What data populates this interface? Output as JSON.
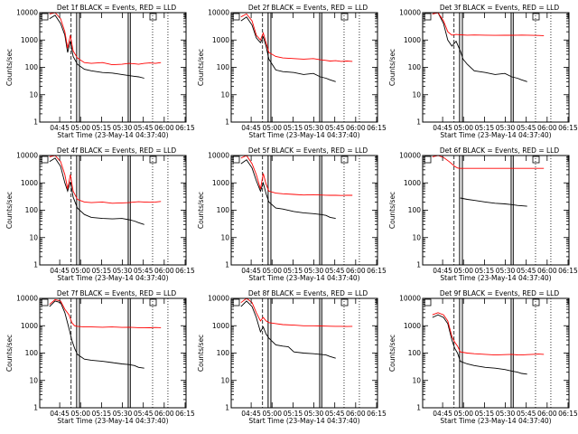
{
  "colors": {
    "events": "#000000",
    "lld": "#ff0000"
  },
  "chart_data": [
    {
      "type": "line",
      "title": "Det 1f BLACK = Events, RED = LLD",
      "xlabel": "Start Time (23-May-14 04:37:40)",
      "ylabel": "Counts/sec",
      "yscale": "log",
      "ylim": [
        1,
        10000
      ],
      "x_tick_labels": [
        "04:45",
        "05:00",
        "05:15",
        "05:30",
        "05:45",
        "06:00",
        "06:15"
      ],
      "y_tick_labels": [
        "1",
        "10",
        "100",
        "1000",
        "10000"
      ],
      "series": [
        {
          "color": "black",
          "x": [
            0,
            4,
            8,
            11,
            13,
            15,
            17,
            20,
            25,
            30,
            38,
            45,
            52,
            57,
            61,
            64,
            68
          ],
          "values": [
            6000,
            8000,
            4000,
            1500,
            350,
            900,
            250,
            130,
            85,
            75,
            65,
            62,
            55,
            50,
            47,
            45,
            40
          ]
        },
        {
          "color": "red",
          "x": [
            0,
            4,
            8,
            11,
            13,
            15,
            17,
            20,
            25,
            30,
            38,
            45,
            52,
            57,
            61,
            64,
            68,
            72,
            76,
            80
          ],
          "values": [
            9000,
            10000,
            6000,
            2000,
            500,
            1500,
            400,
            220,
            150,
            140,
            150,
            125,
            130,
            140,
            135,
            130,
            140,
            145,
            140,
            150
          ]
        }
      ]
    },
    {
      "type": "line",
      "title": "Det 2f BLACK = Events, RED = LLD",
      "xlabel": "Start Time (23-May-14 04:37:40)",
      "ylabel": "Counts/sec",
      "yscale": "log",
      "ylim": [
        1,
        10000
      ],
      "x_tick_labels": [
        "04:45",
        "05:00",
        "05:15",
        "05:30",
        "05:45",
        "06:00",
        "06:15"
      ],
      "y_tick_labels": [
        "1",
        "10",
        "100",
        "1000",
        "10000"
      ],
      "series": [
        {
          "color": "black",
          "x": [
            0,
            4,
            8,
            11,
            14,
            16,
            18,
            20,
            25,
            30,
            38,
            45,
            52,
            57,
            61,
            64,
            68
          ],
          "values": [
            5000,
            7000,
            3500,
            1200,
            800,
            1300,
            600,
            200,
            80,
            70,
            65,
            55,
            60,
            45,
            40,
            35,
            30
          ]
        },
        {
          "color": "red",
          "x": [
            0,
            4,
            8,
            11,
            14,
            16,
            18,
            20,
            25,
            30,
            38,
            45,
            52,
            57,
            61,
            64,
            68,
            72,
            76,
            80
          ],
          "values": [
            7000,
            9000,
            5000,
            1500,
            1000,
            1800,
            800,
            350,
            250,
            220,
            210,
            200,
            210,
            190,
            180,
            170,
            175,
            165,
            170,
            165
          ]
        }
      ]
    },
    {
      "type": "line",
      "title": "Det 3f BLACK = Events, RED = LLD",
      "xlabel": "Start Time (23-May-14 04:37:40)",
      "ylabel": "Counts/sec",
      "yscale": "log",
      "ylim": [
        1,
        10000
      ],
      "x_tick_labels": [
        "04:45",
        "05:00",
        "05:15",
        "05:30",
        "05:45",
        "06:00",
        "06:15"
      ],
      "y_tick_labels": [
        "1",
        "10",
        "100",
        "1000",
        "10000"
      ],
      "series": [
        {
          "color": "black",
          "x": [
            0,
            4,
            8,
            11,
            14,
            17,
            20,
            22,
            25,
            30,
            38,
            45,
            52,
            57,
            61,
            64,
            68
          ],
          "values": [
            9000,
            10000,
            4000,
            1000,
            600,
            900,
            400,
            200,
            130,
            75,
            65,
            55,
            60,
            45,
            40,
            35,
            30
          ]
        },
        {
          "color": "red",
          "x": [
            0,
            4,
            8,
            11,
            14,
            17,
            20,
            25,
            30,
            38,
            45,
            52,
            57,
            61,
            64,
            68,
            72,
            76,
            80
          ],
          "values": [
            9000,
            10000,
            5000,
            2000,
            1500,
            1600,
            1550,
            1500,
            1520,
            1500,
            1480,
            1500,
            1490,
            1500,
            1510,
            1500,
            1480,
            1470,
            1450
          ]
        }
      ]
    },
    {
      "type": "line",
      "title": "Det 4f BLACK = Events, RED = LLD",
      "xlabel": "Start Time (23-May-14 04:37:40)",
      "ylabel": "Counts/sec",
      "yscale": "log",
      "ylim": [
        1,
        10000
      ],
      "x_tick_labels": [
        "04:45",
        "05:00",
        "05:15",
        "05:30",
        "05:45",
        "06:00",
        "06:15"
      ],
      "y_tick_labels": [
        "1",
        "10",
        "100",
        "1000",
        "10000"
      ],
      "series": [
        {
          "color": "black",
          "x": [
            0,
            4,
            8,
            11,
            13,
            15,
            17,
            20,
            25,
            30,
            38,
            45,
            52,
            57,
            61,
            64,
            68
          ],
          "values": [
            6000,
            8000,
            4000,
            1000,
            500,
            1100,
            300,
            120,
            70,
            55,
            50,
            48,
            50,
            45,
            40,
            35,
            30
          ]
        },
        {
          "color": "red",
          "x": [
            0,
            4,
            8,
            11,
            13,
            15,
            17,
            20,
            25,
            30,
            38,
            45,
            52,
            57,
            61,
            64,
            68,
            72,
            76,
            80
          ],
          "values": [
            9000,
            10000,
            6000,
            2000,
            600,
            2000,
            500,
            250,
            200,
            190,
            200,
            180,
            185,
            190,
            200,
            205,
            200,
            195,
            200,
            210
          ]
        }
      ]
    },
    {
      "type": "line",
      "title": "Det 5f BLACK = Events, RED = LLD",
      "xlabel": "Start Time (23-May-14 04:37:40)",
      "ylabel": "Counts/sec",
      "yscale": "log",
      "ylim": [
        1,
        10000
      ],
      "x_tick_labels": [
        "04:45",
        "05:00",
        "05:15",
        "05:30",
        "05:45",
        "06:00",
        "06:15"
      ],
      "y_tick_labels": [
        "1",
        "10",
        "100",
        "1000",
        "10000"
      ],
      "series": [
        {
          "color": "black",
          "x": [
            0,
            4,
            8,
            11,
            14,
            16,
            18,
            20,
            25,
            30,
            38,
            45,
            52,
            57,
            61,
            64,
            68
          ],
          "values": [
            5000,
            7000,
            3500,
            1200,
            500,
            1000,
            400,
            200,
            120,
            110,
            90,
            80,
            75,
            70,
            65,
            55,
            50
          ]
        },
        {
          "color": "red",
          "x": [
            0,
            4,
            8,
            11,
            14,
            16,
            18,
            20,
            25,
            30,
            38,
            45,
            52,
            57,
            61,
            64,
            68,
            72,
            76,
            80
          ],
          "values": [
            8000,
            10000,
            5000,
            2000,
            600,
            2200,
            900,
            500,
            420,
            400,
            380,
            360,
            370,
            360,
            355,
            350,
            350,
            345,
            350,
            350
          ]
        }
      ]
    },
    {
      "type": "line",
      "title": "Det 6f BLACK = Events, RED = LLD",
      "xlabel": "Start Time (23-May-14 04:37:40)",
      "ylabel": "Counts/sec",
      "yscale": "log",
      "ylim": [
        1,
        10000
      ],
      "x_tick_labels": [
        "04:45",
        "05:00",
        "05:15",
        "05:30",
        "05:45",
        "06:00",
        "06:15"
      ],
      "y_tick_labels": [
        "1",
        "10",
        "100",
        "1000",
        "10000"
      ],
      "series": [
        {
          "color": "black",
          "x": [
            20,
            25,
            30,
            38,
            45,
            52,
            57,
            61,
            64,
            68
          ],
          "values": [
            280,
            250,
            230,
            200,
            180,
            170,
            160,
            150,
            145,
            140
          ]
        },
        {
          "color": "red",
          "x": [
            0,
            4,
            8,
            12,
            16,
            18,
            20,
            25,
            30,
            38,
            45,
            52,
            57,
            61,
            64,
            68,
            72,
            76,
            80
          ],
          "values": [
            9000,
            10000,
            8500,
            6000,
            4000,
            3500,
            3400,
            3400,
            3400,
            3400,
            3400,
            3400,
            3400,
            3400,
            3400,
            3400,
            3400,
            3400,
            3400
          ]
        }
      ]
    },
    {
      "type": "line",
      "title": "Det 7f BLACK = Events, RED = LLD",
      "xlabel": "Start Time (23-May-14 04:37:40)",
      "ylabel": "Counts/sec",
      "yscale": "log",
      "ylim": [
        1,
        10000
      ],
      "x_tick_labels": [
        "04:45",
        "05:00",
        "05:15",
        "05:30",
        "05:45",
        "06:00",
        "06:15"
      ],
      "y_tick_labels": [
        "1",
        "10",
        "100",
        "1000",
        "10000"
      ],
      "series": [
        {
          "color": "black",
          "x": [
            0,
            4,
            8,
            11,
            14,
            16,
            18,
            20,
            25,
            30,
            38,
            45,
            52,
            57,
            61,
            64,
            68
          ],
          "values": [
            5000,
            8000,
            7000,
            3000,
            800,
            300,
            150,
            90,
            60,
            55,
            50,
            45,
            40,
            38,
            35,
            30,
            28
          ]
        },
        {
          "color": "red",
          "x": [
            0,
            4,
            8,
            11,
            14,
            16,
            18,
            20,
            25,
            30,
            38,
            45,
            52,
            57,
            61,
            64,
            68,
            72,
            76,
            80
          ],
          "values": [
            6000,
            9000,
            8000,
            4000,
            2500,
            1300,
            1000,
            950,
            900,
            900,
            880,
            900,
            870,
            880,
            860,
            850,
            850,
            840,
            860,
            850
          ]
        }
      ]
    },
    {
      "type": "line",
      "title": "Det 8f BLACK = Events, RED = LLD",
      "xlabel": "Start Time (23-May-14 04:37:40)",
      "ylabel": "Counts/sec",
      "yscale": "log",
      "ylim": [
        1,
        10000
      ],
      "x_tick_labels": [
        "04:45",
        "05:00",
        "05:15",
        "05:30",
        "05:45",
        "06:00",
        "06:15"
      ],
      "y_tick_labels": [
        "1",
        "10",
        "100",
        "1000",
        "10000"
      ],
      "series": [
        {
          "color": "black",
          "x": [
            0,
            4,
            8,
            11,
            14,
            16,
            18,
            20,
            25,
            30,
            34,
            38,
            45,
            52,
            57,
            61,
            64,
            68
          ],
          "values": [
            5000,
            8000,
            5000,
            2000,
            600,
            900,
            500,
            350,
            200,
            180,
            170,
            110,
            100,
            95,
            90,
            85,
            75,
            65
          ]
        },
        {
          "color": "red",
          "x": [
            0,
            4,
            8,
            11,
            14,
            16,
            18,
            20,
            25,
            30,
            38,
            45,
            52,
            57,
            61,
            64,
            68,
            72,
            76,
            80
          ],
          "values": [
            7000,
            10000,
            7000,
            3000,
            1500,
            2000,
            1500,
            1300,
            1200,
            1100,
            1050,
            1000,
            1000,
            980,
            970,
            960,
            950,
            950,
            940,
            950
          ]
        }
      ]
    },
    {
      "type": "line",
      "title": "Det 9f BLACK = Events, RED = LLD",
      "xlabel": "Start Time (23-May-14 04:37:40)",
      "ylabel": "Counts/sec",
      "yscale": "log",
      "ylim": [
        1,
        10000
      ],
      "x_tick_labels": [
        "04:45",
        "05:00",
        "05:15",
        "05:30",
        "05:45",
        "06:00",
        "06:15"
      ],
      "y_tick_labels": [
        "1",
        "10",
        "100",
        "1000",
        "10000"
      ],
      "series": [
        {
          "color": "black",
          "x": [
            0,
            4,
            8,
            11,
            14,
            16,
            18,
            20,
            25,
            30,
            38,
            45,
            52,
            57,
            61,
            64,
            68
          ],
          "values": [
            2000,
            2500,
            2000,
            1200,
            300,
            150,
            100,
            50,
            40,
            35,
            30,
            28,
            25,
            22,
            20,
            18,
            17
          ]
        },
        {
          "color": "red",
          "x": [
            0,
            4,
            8,
            11,
            14,
            16,
            18,
            20,
            25,
            30,
            38,
            45,
            52,
            57,
            61,
            64,
            68,
            72,
            76,
            80
          ],
          "values": [
            2500,
            3000,
            2500,
            1500,
            400,
            250,
            180,
            110,
            100,
            95,
            90,
            85,
            88,
            90,
            86,
            85,
            88,
            90,
            92,
            90
          ]
        }
      ]
    }
  ]
}
